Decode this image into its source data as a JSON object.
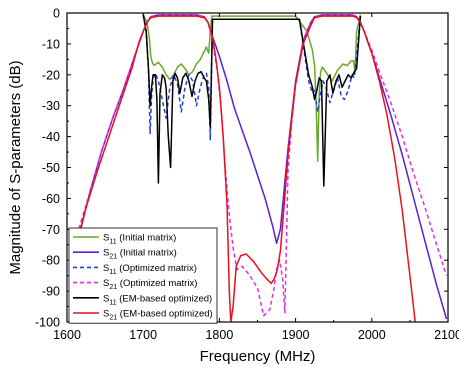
{
  "chart_data": {
    "type": "line",
    "xlabel": "Frequency (MHz)",
    "ylabel": "Magnitude of S-parameters (dB)",
    "xlim": [
      1600,
      2100
    ],
    "ylim": [
      -100,
      0
    ],
    "xticks": [
      "1600",
      "1700",
      "1800",
      "1900",
      "2000",
      "2100"
    ],
    "yticks": [
      "0",
      "-10",
      "-20",
      "-30",
      "-40",
      "-50",
      "-60",
      "-70",
      "-80",
      "-90",
      "-100"
    ],
    "grid": false,
    "legend_position": "bottom-left",
    "series": [
      {
        "id": "s11_initial",
        "legend_sub": "11",
        "legend_suffix": " (Initial matrix)",
        "color": "#6aa82c",
        "dash": "solid",
        "x": [
          1700,
          1705,
          1708,
          1710,
          1712,
          1714,
          1717,
          1720,
          1725,
          1730,
          1735,
          1740,
          1745,
          1750,
          1755,
          1760,
          1765,
          1770,
          1775,
          1780,
          1783,
          1786,
          1788,
          1790,
          1900,
          1915,
          1922,
          1925,
          1927,
          1929,
          1931,
          1933,
          1935,
          1938,
          1942,
          1948,
          1955,
          1962,
          1968,
          1973,
          1976,
          1978,
          1980,
          1985
        ],
        "y": [
          -0.5,
          -3,
          -8,
          -14,
          -16,
          -17,
          -16.5,
          -16,
          -17.5,
          -20,
          -21.5,
          -20,
          -17.5,
          -16.5,
          -18,
          -20,
          -19,
          -16.5,
          -15,
          -12.5,
          -11,
          -13,
          -6,
          -1,
          -1,
          -6,
          -12,
          -17,
          -30,
          -48,
          -26,
          -19,
          -17.5,
          -18.5,
          -20,
          -22,
          -18.5,
          -16.5,
          -17,
          -15.5,
          -15.5,
          -19,
          -6,
          -0.5
        ]
      },
      {
        "id": "s21_initial",
        "legend_sub": "21",
        "legend_suffix": " (Initial matrix)",
        "color": "#5b1fd6",
        "dash": "solid",
        "x": [
          1615,
          1630,
          1645,
          1660,
          1675,
          1690,
          1700,
          1705,
          1710,
          1720,
          1770,
          1780,
          1785,
          1790,
          1800,
          1810,
          1820,
          1840,
          1860,
          1870,
          1875,
          1880,
          1890,
          1900,
          1910,
          1920,
          1925,
          1935,
          1975,
          1980,
          1985,
          1990,
          2000,
          2010,
          2025,
          2040,
          2055,
          2070,
          2085,
          2098
        ],
        "y": [
          -73,
          -58,
          -45,
          -34,
          -24,
          -13,
          -6,
          -3,
          -1.2,
          -0.6,
          -0.6,
          -1.2,
          -3,
          -7,
          -14,
          -22,
          -31,
          -45,
          -60,
          -69,
          -74.5,
          -70,
          -44,
          -22,
          -9,
          -3,
          -1.2,
          -0.6,
          -0.6,
          -1.2,
          -3,
          -6,
          -13,
          -21,
          -33,
          -46,
          -60,
          -74,
          -88,
          -99
        ]
      },
      {
        "id": "s11_optimized",
        "legend_sub": "11",
        "legend_suffix": " (Optimized matrix)",
        "color": "#1f3fd8",
        "dash": "dashed",
        "x": [
          1700,
          1704,
          1707,
          1709,
          1711,
          1713,
          1716,
          1720,
          1725,
          1730,
          1735,
          1740,
          1745,
          1750,
          1755,
          1760,
          1765,
          1770,
          1775,
          1780,
          1783,
          1786,
          1788,
          1791,
          1905,
          1917,
          1922,
          1925,
          1929,
          1932,
          1936,
          1940,
          1945,
          1950,
          1955,
          1960,
          1964,
          1969,
          1974,
          1977,
          1980,
          1985
        ],
        "y": [
          -0.5,
          -6,
          -19,
          -39,
          -27,
          -21,
          -19.5,
          -22,
          -28,
          -34,
          -24,
          -20,
          -23,
          -32,
          -24,
          -20,
          -22,
          -30,
          -24,
          -20,
          -19.5,
          -24,
          -41,
          -2,
          -2,
          -22,
          -26,
          -25,
          -32,
          -27,
          -22,
          -24,
          -29,
          -25,
          -21,
          -27,
          -28,
          -25,
          -20,
          -21,
          -14,
          -1
        ]
      },
      {
        "id": "s21_optimized",
        "legend_sub": "21",
        "legend_suffix": " (Optimized matrix)",
        "color": "#e62ae6",
        "dash": "dashed",
        "x": [
          1613,
          1630,
          1645,
          1660,
          1675,
          1690,
          1700,
          1705,
          1710,
          1720,
          1770,
          1780,
          1785,
          1790,
          1797,
          1803,
          1807,
          1812,
          1818,
          1823,
          1830,
          1840,
          1850,
          1858,
          1866,
          1871,
          1875,
          1879,
          1883,
          1886,
          1890,
          1895,
          1900,
          1910,
          1920,
          1925,
          1935,
          1975,
          1980,
          1985,
          1990,
          2000,
          2010,
          2025,
          2040,
          2055,
          2070,
          2085,
          2098
        ],
        "y": [
          -72,
          -58,
          -45,
          -34,
          -24,
          -13,
          -6,
          -3,
          -1.2,
          -0.6,
          -0.6,
          -1.2,
          -3,
          -8,
          -18,
          -33,
          -48,
          -63,
          -76,
          -83,
          -82,
          -85,
          -89,
          -98,
          -96,
          -90,
          -83,
          -80,
          -86,
          -97,
          -51,
          -35,
          -23,
          -9,
          -3,
          -1.2,
          -0.6,
          -0.6,
          -1.2,
          -3,
          -6,
          -12,
          -19,
          -29,
          -40,
          -52,
          -63,
          -75,
          -85
        ]
      },
      {
        "id": "s11_em",
        "legend_sub": "11",
        "legend_suffix": " (EM-based optimized)",
        "color": "#000000",
        "dash": "solid",
        "x": [
          1700,
          1704,
          1707,
          1709,
          1711,
          1713,
          1716,
          1718,
          1720,
          1722,
          1725,
          1728,
          1730,
          1733,
          1736,
          1739,
          1742,
          1745,
          1748,
          1752,
          1756,
          1760,
          1764,
          1768,
          1772,
          1776,
          1780,
          1783,
          1786,
          1788,
          1791,
          1905,
          1917,
          1922,
          1925,
          1928,
          1931,
          1934,
          1937,
          1941,
          1945,
          1949,
          1953,
          1957,
          1961,
          1965,
          1969,
          1973,
          1977,
          1980,
          1985
        ],
        "y": [
          -0.5,
          -6,
          -18,
          -30,
          -24,
          -20,
          -20,
          -28,
          -55,
          -26,
          -20,
          -21,
          -24,
          -40,
          -50,
          -22,
          -19.5,
          -21,
          -26,
          -21,
          -19.5,
          -22,
          -27,
          -22,
          -19.5,
          -19,
          -21,
          -22,
          -28,
          -37,
          -2,
          -2,
          -20,
          -24,
          -28,
          -25,
          -21,
          -22,
          -56,
          -22,
          -20,
          -26,
          -22,
          -20,
          -24,
          -22,
          -20,
          -21,
          -19,
          -18,
          -1
        ]
      },
      {
        "id": "s21_em",
        "legend_sub": "21",
        "legend_suffix": " (EM-based optimized)",
        "color": "#e8101c",
        "dash": "solid",
        "x": [
          1611,
          1625,
          1640,
          1655,
          1670,
          1685,
          1695,
          1700,
          1705,
          1710,
          1720,
          1770,
          1780,
          1785,
          1790,
          1795,
          1800,
          1805,
          1810,
          1813,
          1815,
          1818,
          1822,
          1828,
          1835,
          1845,
          1855,
          1862,
          1868,
          1872,
          1876,
          1880,
          1885,
          1890,
          1895,
          1900,
          1910,
          1920,
          1925,
          1935,
          1975,
          1980,
          1985,
          1990,
          2000,
          2010,
          2020,
          2030,
          2040,
          2050,
          2057
        ],
        "y": [
          -76,
          -63,
          -51,
          -40,
          -29,
          -18,
          -9,
          -6,
          -3,
          -1.5,
          -1,
          -1,
          -1.5,
          -3,
          -7,
          -14,
          -24,
          -40,
          -62,
          -90,
          -100,
          -95,
          -82,
          -78.5,
          -78,
          -80.5,
          -84,
          -86,
          -87.5,
          -86,
          -83,
          -77,
          -62,
          -46,
          -34,
          -23,
          -10,
          -4,
          -1.5,
          -1,
          -1,
          -1.5,
          -3,
          -6,
          -13,
          -22,
          -33,
          -47,
          -64,
          -85,
          -100
        ]
      }
    ]
  }
}
